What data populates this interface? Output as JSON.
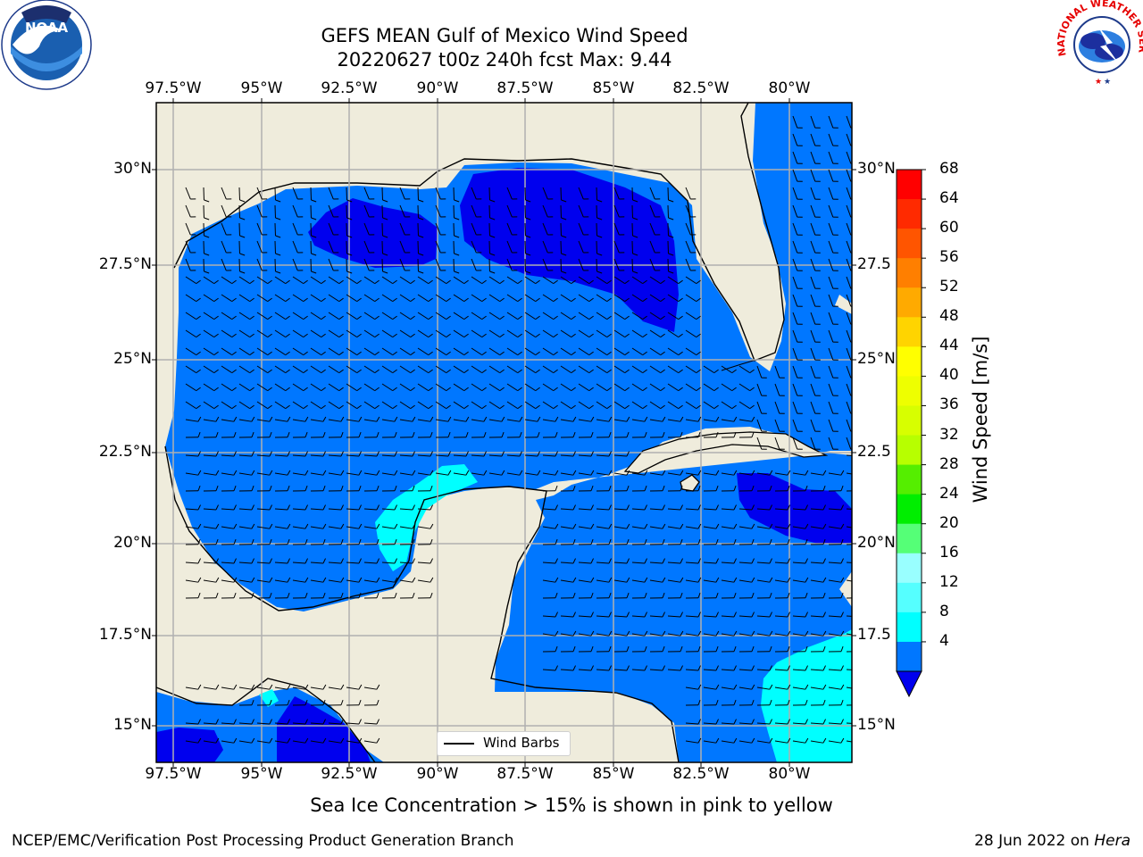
{
  "title_line1": "GEFS MEAN Gulf of Mexico Wind Speed",
  "title_line2": "20220627 t00z 240h fcst   Max: 9.44",
  "caption": "Sea Ice Concentration > 15% is shown in pink to yellow",
  "footer_left": "NCEP/EMC/Verification Post Processing Product Generation Branch",
  "footer_right_date": "28 Jun 2022 on ",
  "footer_right_host": "Hera",
  "legend_label": "Wind Barbs",
  "lon_labels": [
    "97.5°W",
    "95°W",
    "92.5°W",
    "90°W",
    "87.5°W",
    "85°W",
    "82.5°W",
    "80°W"
  ],
  "lat_labels": [
    "30°N",
    "27.5°N",
    "25°N",
    "22.5°N",
    "20°N",
    "17.5°N",
    "15°N"
  ],
  "lat_labels_right": [
    "30°N",
    "27.5",
    "25°N",
    "22.5",
    "20°N",
    "17.5",
    "15°N"
  ],
  "colorbar": {
    "title": "Wind Speed [m/s]",
    "ticks": [
      "68",
      "64",
      "60",
      "56",
      "52",
      "48",
      "44",
      "40",
      "36",
      "32",
      "28",
      "24",
      "20",
      "16",
      "12",
      "8",
      "4"
    ],
    "colors": [
      "#ff0000",
      "#ff2a00",
      "#ff5500",
      "#ff7f00",
      "#ffaa00",
      "#ffd400",
      "#ffff00",
      "#eeff00",
      "#d7ff00",
      "#b7ff00",
      "#55ee00",
      "#00ee00",
      "#55ff77",
      "#99ffff",
      "#55ffff",
      "#00ffff",
      "#0077ff"
    ],
    "under_color": "#0000ee"
  },
  "map_colors": {
    "land": "#efecdc",
    "water_4_8": "#0077ff",
    "water_under_4": "#0000ee",
    "water_8_12": "#00ffff",
    "coast": "#000000",
    "grid": "#b0b0b0"
  },
  "logos": [
    "noaa-logo",
    "national-weather-service-logo"
  ]
}
